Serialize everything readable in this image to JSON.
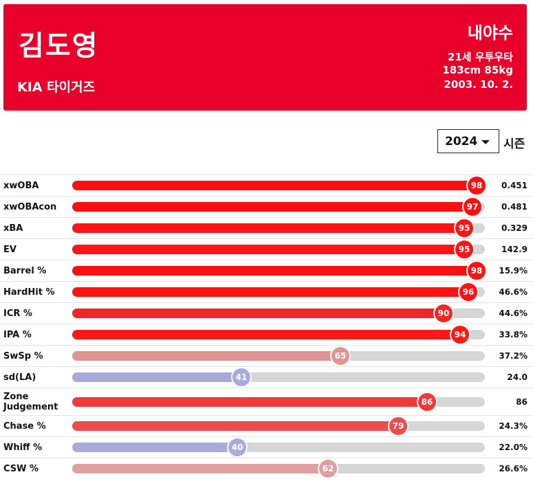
{
  "player": {
    "name": "김도영",
    "team": "KIA 타이거즈",
    "position": "내야수",
    "age_hand": "21세 우투우타",
    "body": "183cm 85kg",
    "birth": "2003. 10. 2."
  },
  "season": {
    "selected": "2024",
    "label": "시즌"
  },
  "colors": {
    "header": "#e8002a",
    "track": "#d6d6d6"
  },
  "metrics": [
    {
      "label": "xwOBA",
      "percentile": 98,
      "value": "0.451",
      "color": "#ff1010"
    },
    {
      "label": "xwOBAcon",
      "percentile": 97,
      "value": "0.481",
      "color": "#ff1010"
    },
    {
      "label": "xBA",
      "percentile": 95,
      "value": "0.329",
      "color": "#ff1515"
    },
    {
      "label": "EV",
      "percentile": 95,
      "value": "142.9",
      "color": "#ff1515"
    },
    {
      "label": "Barrel %",
      "percentile": 98,
      "value": "15.9%",
      "color": "#ff1010"
    },
    {
      "label": "HardHit %",
      "percentile": 96,
      "value": "46.6%",
      "color": "#ff1212"
    },
    {
      "label": "ICR %",
      "percentile": 90,
      "value": "44.6%",
      "color": "#f42525"
    },
    {
      "label": "IPA %",
      "percentile": 94,
      "value": "33.8%",
      "color": "#ff1818"
    },
    {
      "label": "SwSp %",
      "percentile": 65,
      "value": "37.2%",
      "color": "#e09494"
    },
    {
      "label": "sd(LA)",
      "percentile": 41,
      "value": "24.0",
      "color": "#a9a9dc"
    },
    {
      "label": "Zone Judgement",
      "percentile": 86,
      "value": "86",
      "color": "#f03a3a",
      "tall": true
    },
    {
      "label": "Chase %",
      "percentile": 79,
      "value": "24.3%",
      "color": "#ec4c4c"
    },
    {
      "label": "Whiff %",
      "percentile": 40,
      "value": "22.0%",
      "color": "#aaaadd"
    },
    {
      "label": "CSW %",
      "percentile": 62,
      "value": "26.6%",
      "color": "#e0a0a0"
    }
  ]
}
